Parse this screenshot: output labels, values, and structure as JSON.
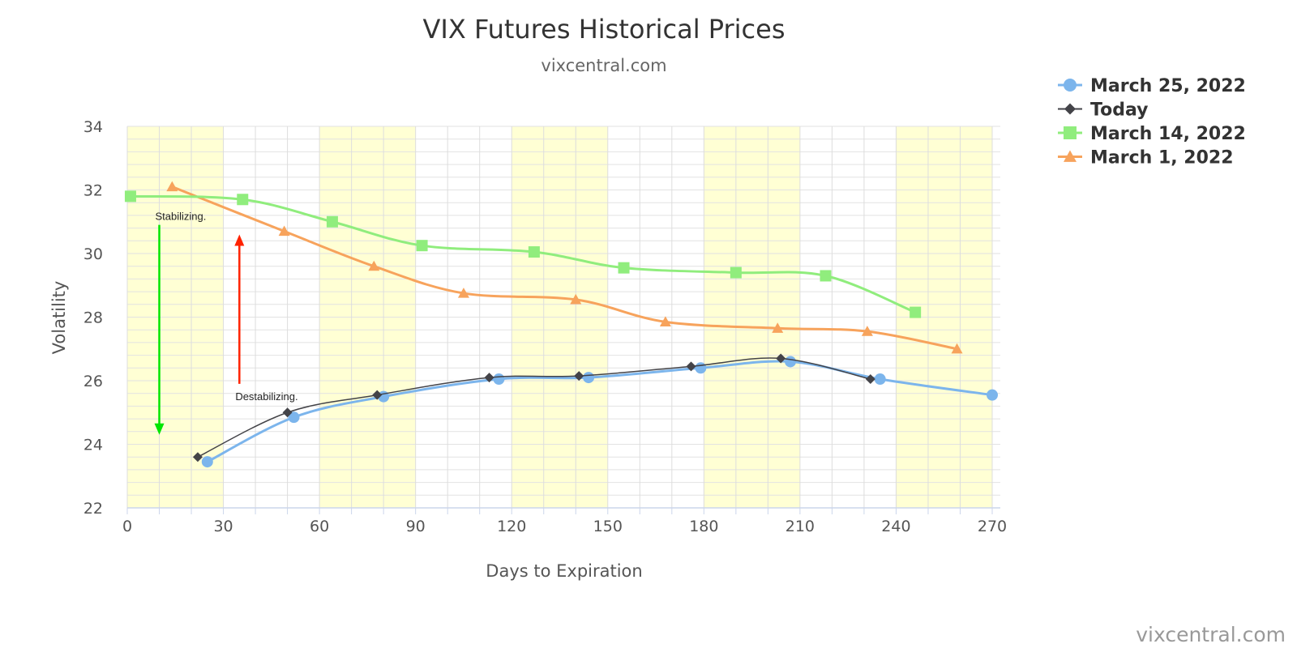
{
  "chart_data": {
    "type": "line",
    "title": "VIX Futures Historical Prices",
    "subtitle": "vixcentral.com",
    "xlabel": "Days to Expiration",
    "ylabel": "Volatility",
    "xlim": [
      0,
      270
    ],
    "ylim": [
      22,
      34
    ],
    "x_ticks": [
      0,
      30,
      60,
      90,
      120,
      150,
      180,
      210,
      240,
      270
    ],
    "y_ticks": [
      22,
      24,
      26,
      28,
      30,
      32,
      34
    ],
    "grid": true,
    "legend_position": "top-right",
    "credit": "vixcentral.com",
    "series": [
      {
        "name": "March 25, 2022",
        "marker": "circle",
        "color": "#7cb5ec",
        "points": [
          [
            25,
            23.45
          ],
          [
            52,
            24.85
          ],
          [
            80,
            25.5
          ],
          [
            116,
            26.05
          ],
          [
            144,
            26.1
          ],
          [
            179,
            26.4
          ],
          [
            207,
            26.6
          ],
          [
            235,
            26.05
          ],
          [
            270,
            25.55
          ]
        ]
      },
      {
        "name": "Today",
        "marker": "diamond",
        "color": "#434348",
        "points": [
          [
            22,
            23.6
          ],
          [
            50,
            25.0
          ],
          [
            78,
            25.55
          ],
          [
            113,
            26.1
          ],
          [
            141,
            26.15
          ],
          [
            176,
            26.45
          ],
          [
            204,
            26.7
          ],
          [
            232,
            26.05
          ]
        ]
      },
      {
        "name": "March 14, 2022",
        "marker": "square",
        "color": "#90ed7d",
        "points": [
          [
            1,
            31.8
          ],
          [
            36,
            31.7
          ],
          [
            64,
            31.0
          ],
          [
            92,
            30.25
          ],
          [
            127,
            30.05
          ],
          [
            155,
            29.55
          ],
          [
            190,
            29.4
          ],
          [
            218,
            29.3
          ],
          [
            246,
            28.15
          ]
        ]
      },
      {
        "name": "March 1, 2022",
        "marker": "triangle",
        "color": "#f7a35c",
        "points": [
          [
            14,
            32.1
          ],
          [
            49,
            30.7
          ],
          [
            77,
            29.6
          ],
          [
            105,
            28.75
          ],
          [
            140,
            28.55
          ],
          [
            168,
            27.85
          ],
          [
            203,
            27.65
          ],
          [
            231,
            27.55
          ],
          [
            259,
            27.0
          ]
        ]
      }
    ],
    "annotations": [
      {
        "text": "Stabilizing.",
        "arrow": "down",
        "color": "#00e600",
        "x": 10,
        "y_from": 30.9,
        "y_to": 24.3
      },
      {
        "text": "Destabilizing.",
        "arrow": "up",
        "color": "#ff2200",
        "x": 35,
        "y_from": 25.9,
        "y_to": 30.6
      }
    ]
  }
}
